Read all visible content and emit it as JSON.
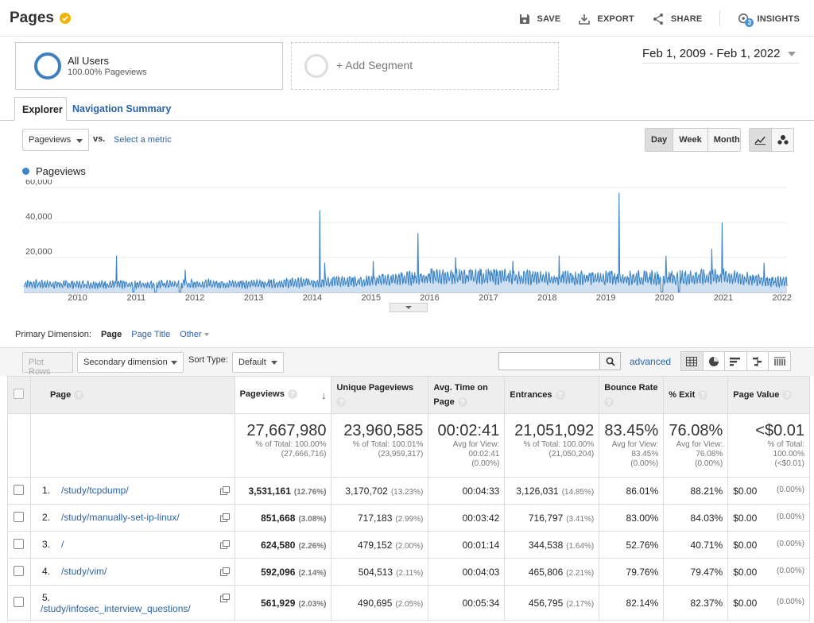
{
  "header": {
    "title": "Pages",
    "actions": [
      {
        "label": "SAVE",
        "icon": "save-icon"
      },
      {
        "label": "EXPORT",
        "icon": "export-icon"
      },
      {
        "label": "SHARE",
        "icon": "share-icon"
      },
      {
        "label": "INSIGHTS",
        "icon": "insights-icon",
        "badge": "3"
      }
    ]
  },
  "segments": {
    "active": {
      "name": "All Users",
      "sub": "100.00% Pageviews"
    },
    "add_label": "+ Add Segment"
  },
  "date_range": "Feb 1, 2009 - Feb 1, 2022",
  "tabs": [
    "Explorer",
    "Navigation Summary"
  ],
  "metric": {
    "selected": "Pageviews",
    "vs": "vs.",
    "select": "Select a metric"
  },
  "period_buttons": [
    "Day",
    "Week",
    "Month"
  ],
  "chart_data": {
    "type": "area",
    "series": [
      {
        "name": "Pageviews",
        "color": "#3d85c6"
      }
    ],
    "y_ticks": [
      "60,000",
      "40,000",
      "20,000"
    ],
    "ylim": [
      0,
      60000
    ],
    "x_ticks": [
      "2010",
      "2011",
      "2012",
      "2013",
      "2014",
      "2015",
      "2016",
      "2017",
      "2018",
      "2019",
      "2020",
      "2021",
      "2022"
    ],
    "xlim": [
      "2009-02-01",
      "2022-02-01"
    ],
    "baseline_by_year": [
      {
        "x": "2009-02-01",
        "y": 6000
      },
      {
        "x": "2010-01-01",
        "y": 5500
      },
      {
        "x": "2011-01-01",
        "y": 5500
      },
      {
        "x": "2012-01-01",
        "y": 6000
      },
      {
        "x": "2013-01-01",
        "y": 6000
      },
      {
        "x": "2014-01-01",
        "y": 7000
      },
      {
        "x": "2015-01-01",
        "y": 8000
      },
      {
        "x": "2016-01-01",
        "y": 11000
      },
      {
        "x": "2017-01-01",
        "y": 11000
      },
      {
        "x": "2018-01-01",
        "y": 10000
      },
      {
        "x": "2019-01-01",
        "y": 10000
      },
      {
        "x": "2020-01-01",
        "y": 10000
      },
      {
        "x": "2021-01-01",
        "y": 11000
      },
      {
        "x": "2022-02-01",
        "y": 7000
      }
    ],
    "spikes": [
      {
        "x": "2010-09-01",
        "y": 21000
      },
      {
        "x": "2011-11-01",
        "y": 13000
      },
      {
        "x": "2014-02-15",
        "y": 47000
      },
      {
        "x": "2014-03-20",
        "y": 17000
      },
      {
        "x": "2015-01-15",
        "y": 18000
      },
      {
        "x": "2015-10-20",
        "y": 34000
      },
      {
        "x": "2016-06-10",
        "y": 20000
      },
      {
        "x": "2017-06-01",
        "y": 18000
      },
      {
        "x": "2018-03-15",
        "y": 21000
      },
      {
        "x": "2019-03-25",
        "y": 57000
      },
      {
        "x": "2020-01-10",
        "y": 21000
      },
      {
        "x": "2020-10-20",
        "y": 25000
      },
      {
        "x": "2020-12-25",
        "y": 40000
      },
      {
        "x": "2021-09-10",
        "y": 17000
      }
    ]
  },
  "primary_dimension": {
    "label": "Primary Dimension:",
    "current": "Page",
    "alt": "Page Title",
    "other": "Other"
  },
  "toolbar": {
    "plot_rows": "Plot Rows",
    "secondary": "Secondary dimension",
    "sort_label": "Sort Type:",
    "sort_value": "Default",
    "advanced": "advanced"
  },
  "table": {
    "headers": [
      "Page",
      "Pageviews",
      "Unique Pageviews",
      "Avg. Time on Page",
      "Entrances",
      "Bounce Rate",
      "% Exit",
      "Page Value"
    ],
    "totals": [
      {
        "big": "27,667,980",
        "l1": "% of Total: 100.00%",
        "l2": "(27,666,716)"
      },
      {
        "big": "23,960,585",
        "l1": "% of Total: 100.01%",
        "l2": "(23,959,317)"
      },
      {
        "big": "00:02:41",
        "l1": "Avg for View:",
        "l2": "00:02:41",
        "l3": "(0.00%)"
      },
      {
        "big": "21,051,092",
        "l1": "% of Total: 100.00%",
        "l2": "(21,050,204)"
      },
      {
        "big": "83.45%",
        "l1": "Avg for View:",
        "l2": "83.45%",
        "l3": "(0.00%)"
      },
      {
        "big": "76.08%",
        "l1": "Avg for View:",
        "l2": "76.08%",
        "l3": "(0.00%)"
      },
      {
        "big": "<$0.01",
        "l1": "% of Total:",
        "l2": "100.00%",
        "l3": "(<$0.01)"
      }
    ],
    "rows": [
      {
        "idx": "1.",
        "page": "/study/tcpdump/",
        "pv": "3,531,161",
        "pvp": "(12.76%)",
        "upv": "3,170,702",
        "upvp": "(13.23%)",
        "time": "00:04:33",
        "ent": "3,126,031",
        "entp": "(14.85%)",
        "bounce": "86.01%",
        "exit": "88.21%",
        "val": "$0.00",
        "valp": "(0.00%)"
      },
      {
        "idx": "2.",
        "page": "/study/manually-set-ip-linux/",
        "pv": "851,668",
        "pvp": "(3.08%)",
        "upv": "717,183",
        "upvp": "(2.99%)",
        "time": "00:03:42",
        "ent": "716,797",
        "entp": "(3.41%)",
        "bounce": "83.00%",
        "exit": "84.03%",
        "val": "$0.00",
        "valp": "(0.00%)"
      },
      {
        "idx": "3.",
        "page": "/",
        "pv": "624,580",
        "pvp": "(2.26%)",
        "upv": "479,152",
        "upvp": "(2.00%)",
        "time": "00:01:14",
        "ent": "344,538",
        "entp": "(1.64%)",
        "bounce": "52.76%",
        "exit": "40.71%",
        "val": "$0.00",
        "valp": "(0.00%)"
      },
      {
        "idx": "4.",
        "page": "/study/vim/",
        "pv": "592,096",
        "pvp": "(2.14%)",
        "upv": "504,513",
        "upvp": "(2.11%)",
        "time": "00:04:03",
        "ent": "465,806",
        "entp": "(2.21%)",
        "bounce": "79.76%",
        "exit": "79.47%",
        "val": "$0.00",
        "valp": "(0.00%)"
      },
      {
        "idx": "5.",
        "page": "/study/infosec_interview_questions/",
        "pv": "561,929",
        "pvp": "(2.03%)",
        "upv": "490,695",
        "upvp": "(2.05%)",
        "time": "00:05:34",
        "ent": "456,795",
        "entp": "(2.17%)",
        "bounce": "82.14%",
        "exit": "82.37%",
        "val": "$0.00",
        "valp": "(0.00%)"
      }
    ]
  }
}
